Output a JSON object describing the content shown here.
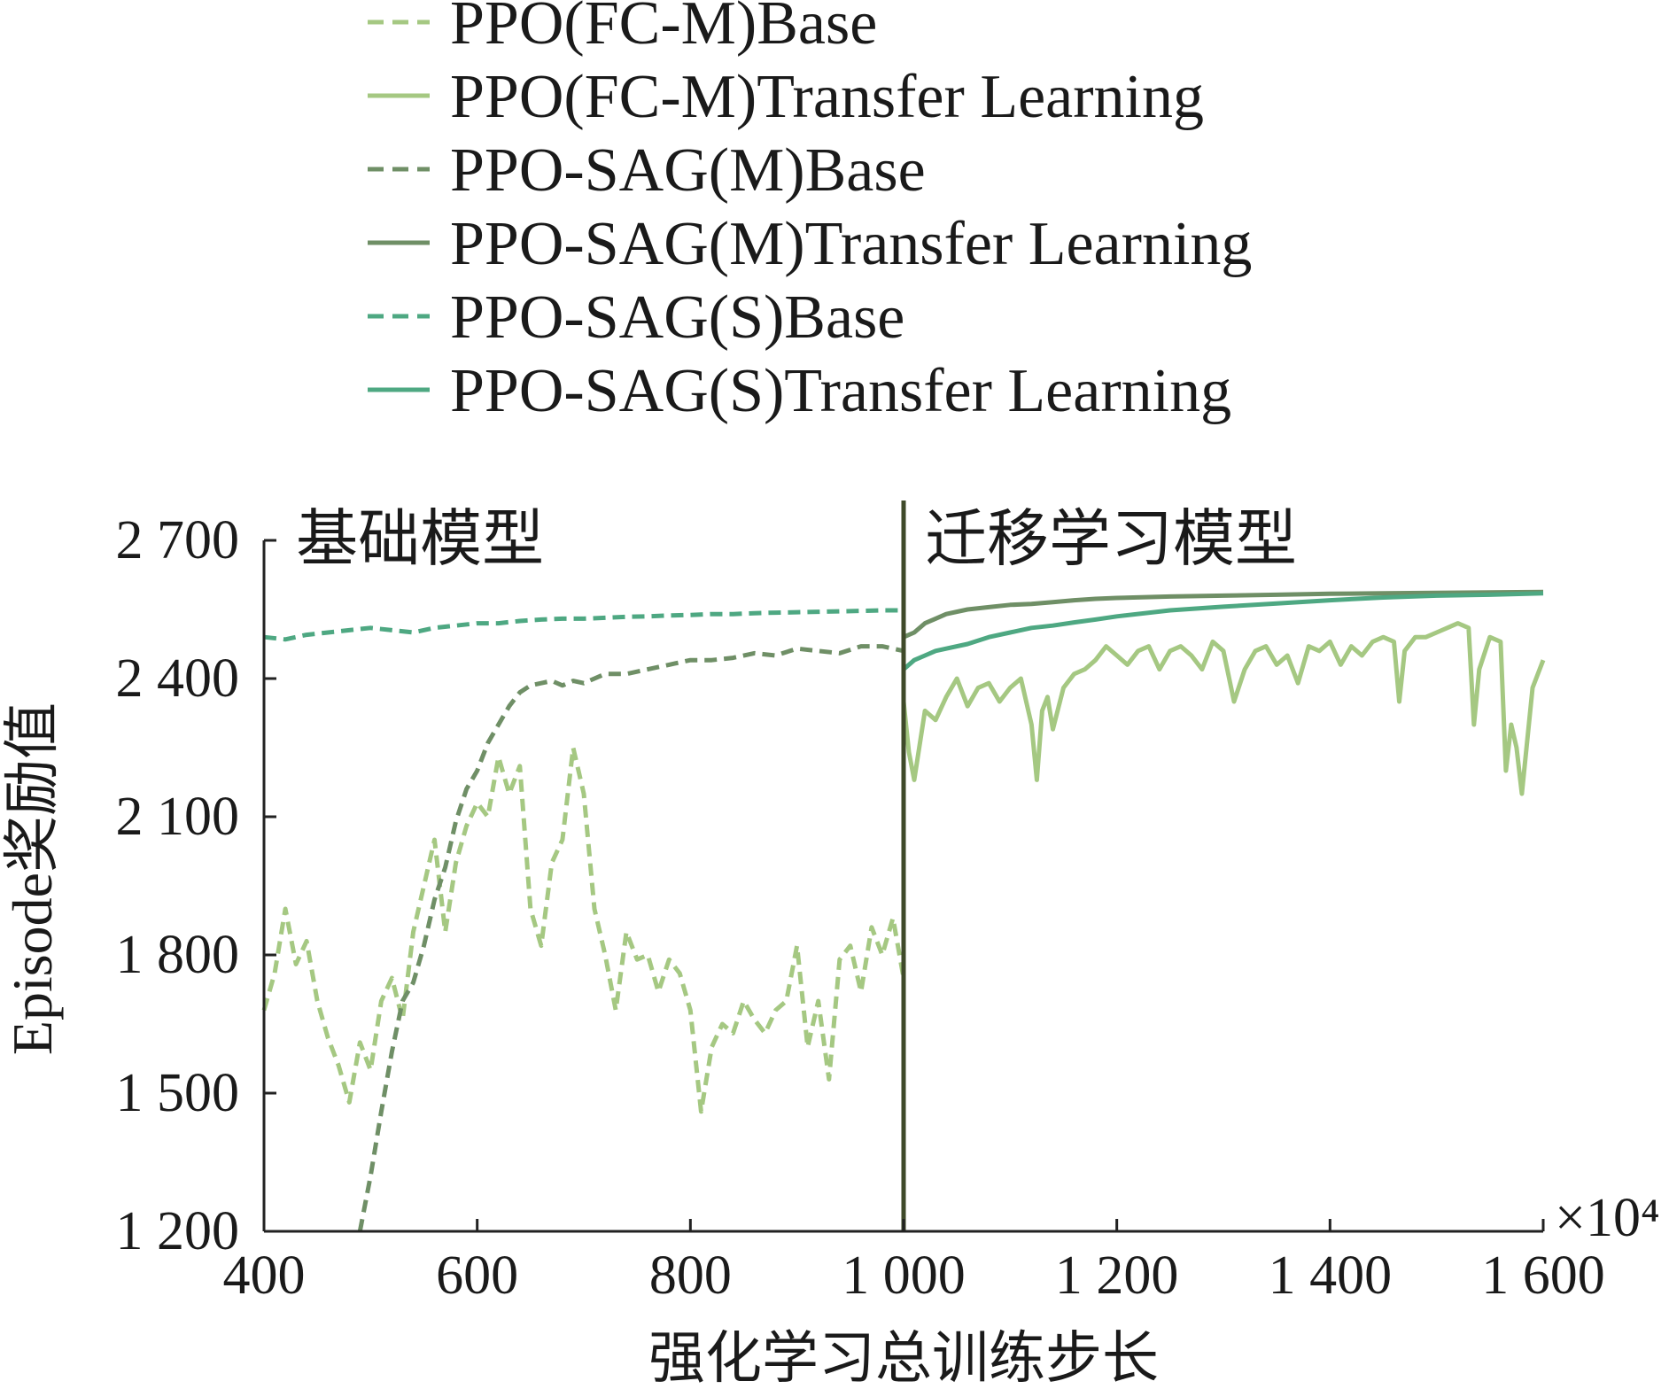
{
  "chart_data": {
    "type": "line",
    "xlabel": "强化学习总训练步长",
    "ylabel": "Episode奖励值",
    "x_multiplier_label": "×10⁴",
    "xlim": [
      400,
      1600
    ],
    "ylim": [
      1200,
      2700
    ],
    "x_ticks": [
      400,
      600,
      800,
      1000,
      1200,
      1400,
      1600
    ],
    "x_tick_labels": [
      "400",
      "600",
      "800",
      "1 000",
      "1 200",
      "1 400",
      "1 600"
    ],
    "y_ticks": [
      1200,
      1500,
      1800,
      2100,
      2400,
      2700
    ],
    "y_tick_labels": [
      "1 200",
      "1 500",
      "1 800",
      "2 100",
      "2 400",
      "2 700"
    ],
    "divider_x": 1000,
    "region_labels": [
      {
        "text": "基础模型",
        "x": 430
      },
      {
        "text": "迁移学习模型",
        "x": 1020
      }
    ],
    "grid": false,
    "legend_position": "top",
    "series": [
      {
        "name": "PPO(FC-M)Base",
        "color": "#a5c882",
        "dash": true,
        "x": [
          400,
          410,
          420,
          430,
          440,
          450,
          460,
          470,
          480,
          490,
          500,
          510,
          520,
          530,
          540,
          550,
          560,
          570,
          580,
          590,
          600,
          610,
          620,
          630,
          640,
          650,
          660,
          670,
          680,
          690,
          700,
          710,
          720,
          730,
          740,
          750,
          760,
          770,
          780,
          790,
          800,
          810,
          820,
          830,
          840,
          850,
          860,
          870,
          880,
          890,
          900,
          910,
          920,
          930,
          940,
          950,
          960,
          970,
          980,
          990,
          1000
        ],
        "y": [
          1680,
          1760,
          1900,
          1780,
          1830,
          1700,
          1620,
          1560,
          1480,
          1610,
          1550,
          1700,
          1750,
          1660,
          1850,
          1950,
          2050,
          1850,
          2000,
          2080,
          2130,
          2100,
          2230,
          2150,
          2210,
          1900,
          1820,
          2000,
          2050,
          2250,
          2150,
          1900,
          1800,
          1680,
          1850,
          1790,
          1800,
          1720,
          1790,
          1760,
          1680,
          1460,
          1600,
          1650,
          1630,
          1700,
          1660,
          1630,
          1680,
          1700,
          1820,
          1600,
          1700,
          1530,
          1790,
          1820,
          1720,
          1860,
          1800,
          1880,
          1750
        ]
      },
      {
        "name": "PPO(FC-M)Transfer Learning",
        "color": "#a5c882",
        "dash": false,
        "x": [
          1000,
          1005,
          1010,
          1020,
          1030,
          1040,
          1050,
          1060,
          1070,
          1080,
          1090,
          1100,
          1110,
          1120,
          1125,
          1130,
          1135,
          1140,
          1150,
          1160,
          1170,
          1180,
          1190,
          1200,
          1210,
          1220,
          1230,
          1240,
          1250,
          1260,
          1270,
          1280,
          1290,
          1300,
          1310,
          1320,
          1330,
          1340,
          1350,
          1360,
          1370,
          1380,
          1390,
          1400,
          1410,
          1420,
          1430,
          1440,
          1450,
          1460,
          1465,
          1470,
          1480,
          1490,
          1500,
          1510,
          1520,
          1530,
          1535,
          1540,
          1550,
          1560,
          1565,
          1570,
          1575,
          1580,
          1590,
          1600
        ],
        "y": [
          2350,
          2240,
          2180,
          2330,
          2310,
          2360,
          2400,
          2340,
          2380,
          2390,
          2350,
          2380,
          2400,
          2300,
          2180,
          2330,
          2360,
          2290,
          2380,
          2410,
          2420,
          2440,
          2470,
          2450,
          2430,
          2460,
          2470,
          2420,
          2460,
          2470,
          2450,
          2420,
          2480,
          2460,
          2350,
          2420,
          2460,
          2470,
          2430,
          2450,
          2390,
          2470,
          2460,
          2480,
          2430,
          2470,
          2450,
          2480,
          2490,
          2480,
          2350,
          2460,
          2490,
          2490,
          2500,
          2510,
          2520,
          2510,
          2300,
          2420,
          2490,
          2480,
          2200,
          2300,
          2250,
          2150,
          2380,
          2440
        ]
      },
      {
        "name": "PPO-SAG(M)Base",
        "color": "#6f8f66",
        "dash": true,
        "x": [
          490,
          500,
          510,
          520,
          530,
          540,
          550,
          560,
          570,
          580,
          590,
          600,
          610,
          620,
          630,
          640,
          650,
          660,
          670,
          680,
          690,
          700,
          720,
          740,
          760,
          780,
          800,
          820,
          840,
          860,
          880,
          900,
          920,
          940,
          960,
          980,
          1000
        ],
        "y": [
          1200,
          1320,
          1460,
          1590,
          1700,
          1740,
          1820,
          1920,
          1990,
          2090,
          2160,
          2200,
          2260,
          2300,
          2340,
          2370,
          2385,
          2390,
          2395,
          2385,
          2395,
          2390,
          2410,
          2410,
          2420,
          2430,
          2440,
          2440,
          2445,
          2455,
          2450,
          2465,
          2460,
          2455,
          2470,
          2470,
          2460
        ]
      },
      {
        "name": "PPO-SAG(M)Transfer Learning",
        "color": "#6f8f66",
        "dash": false,
        "x": [
          1000,
          1010,
          1020,
          1030,
          1040,
          1060,
          1080,
          1100,
          1120,
          1140,
          1160,
          1180,
          1200,
          1250,
          1300,
          1350,
          1400,
          1450,
          1500,
          1550,
          1600
        ],
        "y": [
          2490,
          2500,
          2520,
          2530,
          2540,
          2550,
          2555,
          2560,
          2562,
          2566,
          2570,
          2573,
          2575,
          2578,
          2580,
          2582,
          2584,
          2585,
          2586,
          2587,
          2588
        ]
      },
      {
        "name": "PPO-SAG(S)Base",
        "color": "#4ea882",
        "dash": true,
        "x": [
          400,
          420,
          440,
          460,
          480,
          500,
          520,
          540,
          560,
          580,
          600,
          620,
          640,
          660,
          680,
          700,
          720,
          740,
          760,
          780,
          800,
          820,
          840,
          860,
          880,
          900,
          920,
          940,
          960,
          980,
          1000
        ],
        "y": [
          2490,
          2485,
          2495,
          2500,
          2505,
          2510,
          2505,
          2500,
          2510,
          2515,
          2520,
          2520,
          2525,
          2528,
          2530,
          2530,
          2532,
          2534,
          2535,
          2537,
          2538,
          2540,
          2540,
          2542,
          2543,
          2544,
          2545,
          2546,
          2547,
          2548,
          2548
        ]
      },
      {
        "name": "PPO-SAG(S)Transfer Learning",
        "color": "#4ea882",
        "dash": false,
        "x": [
          1000,
          1010,
          1020,
          1030,
          1040,
          1060,
          1080,
          1100,
          1120,
          1140,
          1160,
          1180,
          1200,
          1250,
          1300,
          1350,
          1400,
          1450,
          1500,
          1550,
          1600
        ],
        "y": [
          2420,
          2440,
          2450,
          2460,
          2465,
          2475,
          2490,
          2500,
          2510,
          2515,
          2522,
          2528,
          2535,
          2548,
          2556,
          2563,
          2570,
          2576,
          2580,
          2582,
          2585
        ]
      }
    ]
  }
}
